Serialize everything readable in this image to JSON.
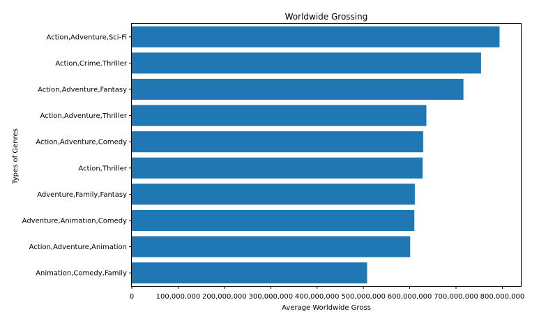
{
  "chart_data": {
    "type": "bar",
    "orientation": "horizontal",
    "title": "Worldwide Grossing",
    "xlabel": "Average Worldwide Gross",
    "ylabel": "Types of Genres",
    "categories": [
      "Action,Adventure,Sci-Fi",
      "Action,Crime,Thriller",
      "Action,Adventure,Fantasy",
      "Action,Adventure,Thriller",
      "Action,Adventure,Comedy",
      "Action,Thriller",
      "Adventure,Family,Fantasy",
      "Adventure,Animation,Comedy",
      "Action,Adventure,Animation",
      "Animation,Comedy,Family"
    ],
    "values": [
      794000000,
      754000000,
      716000000,
      636000000,
      629000000,
      628000000,
      611000000,
      610000000,
      601000000,
      508000000
    ],
    "xlim": [
      0,
      840000000
    ],
    "x_ticks": [
      0,
      100000000,
      200000000,
      300000000,
      400000000,
      500000000,
      600000000,
      700000000,
      800000000
    ],
    "x_tick_labels": [
      "0",
      "100,000,000",
      "200,000,000",
      "300,000,000",
      "400,000,000",
      "500,000,000",
      "600,000,000",
      "700,000,000",
      "800,000,000"
    ],
    "bar_color": "#1f77b4",
    "grid": false,
    "legend": "none"
  }
}
